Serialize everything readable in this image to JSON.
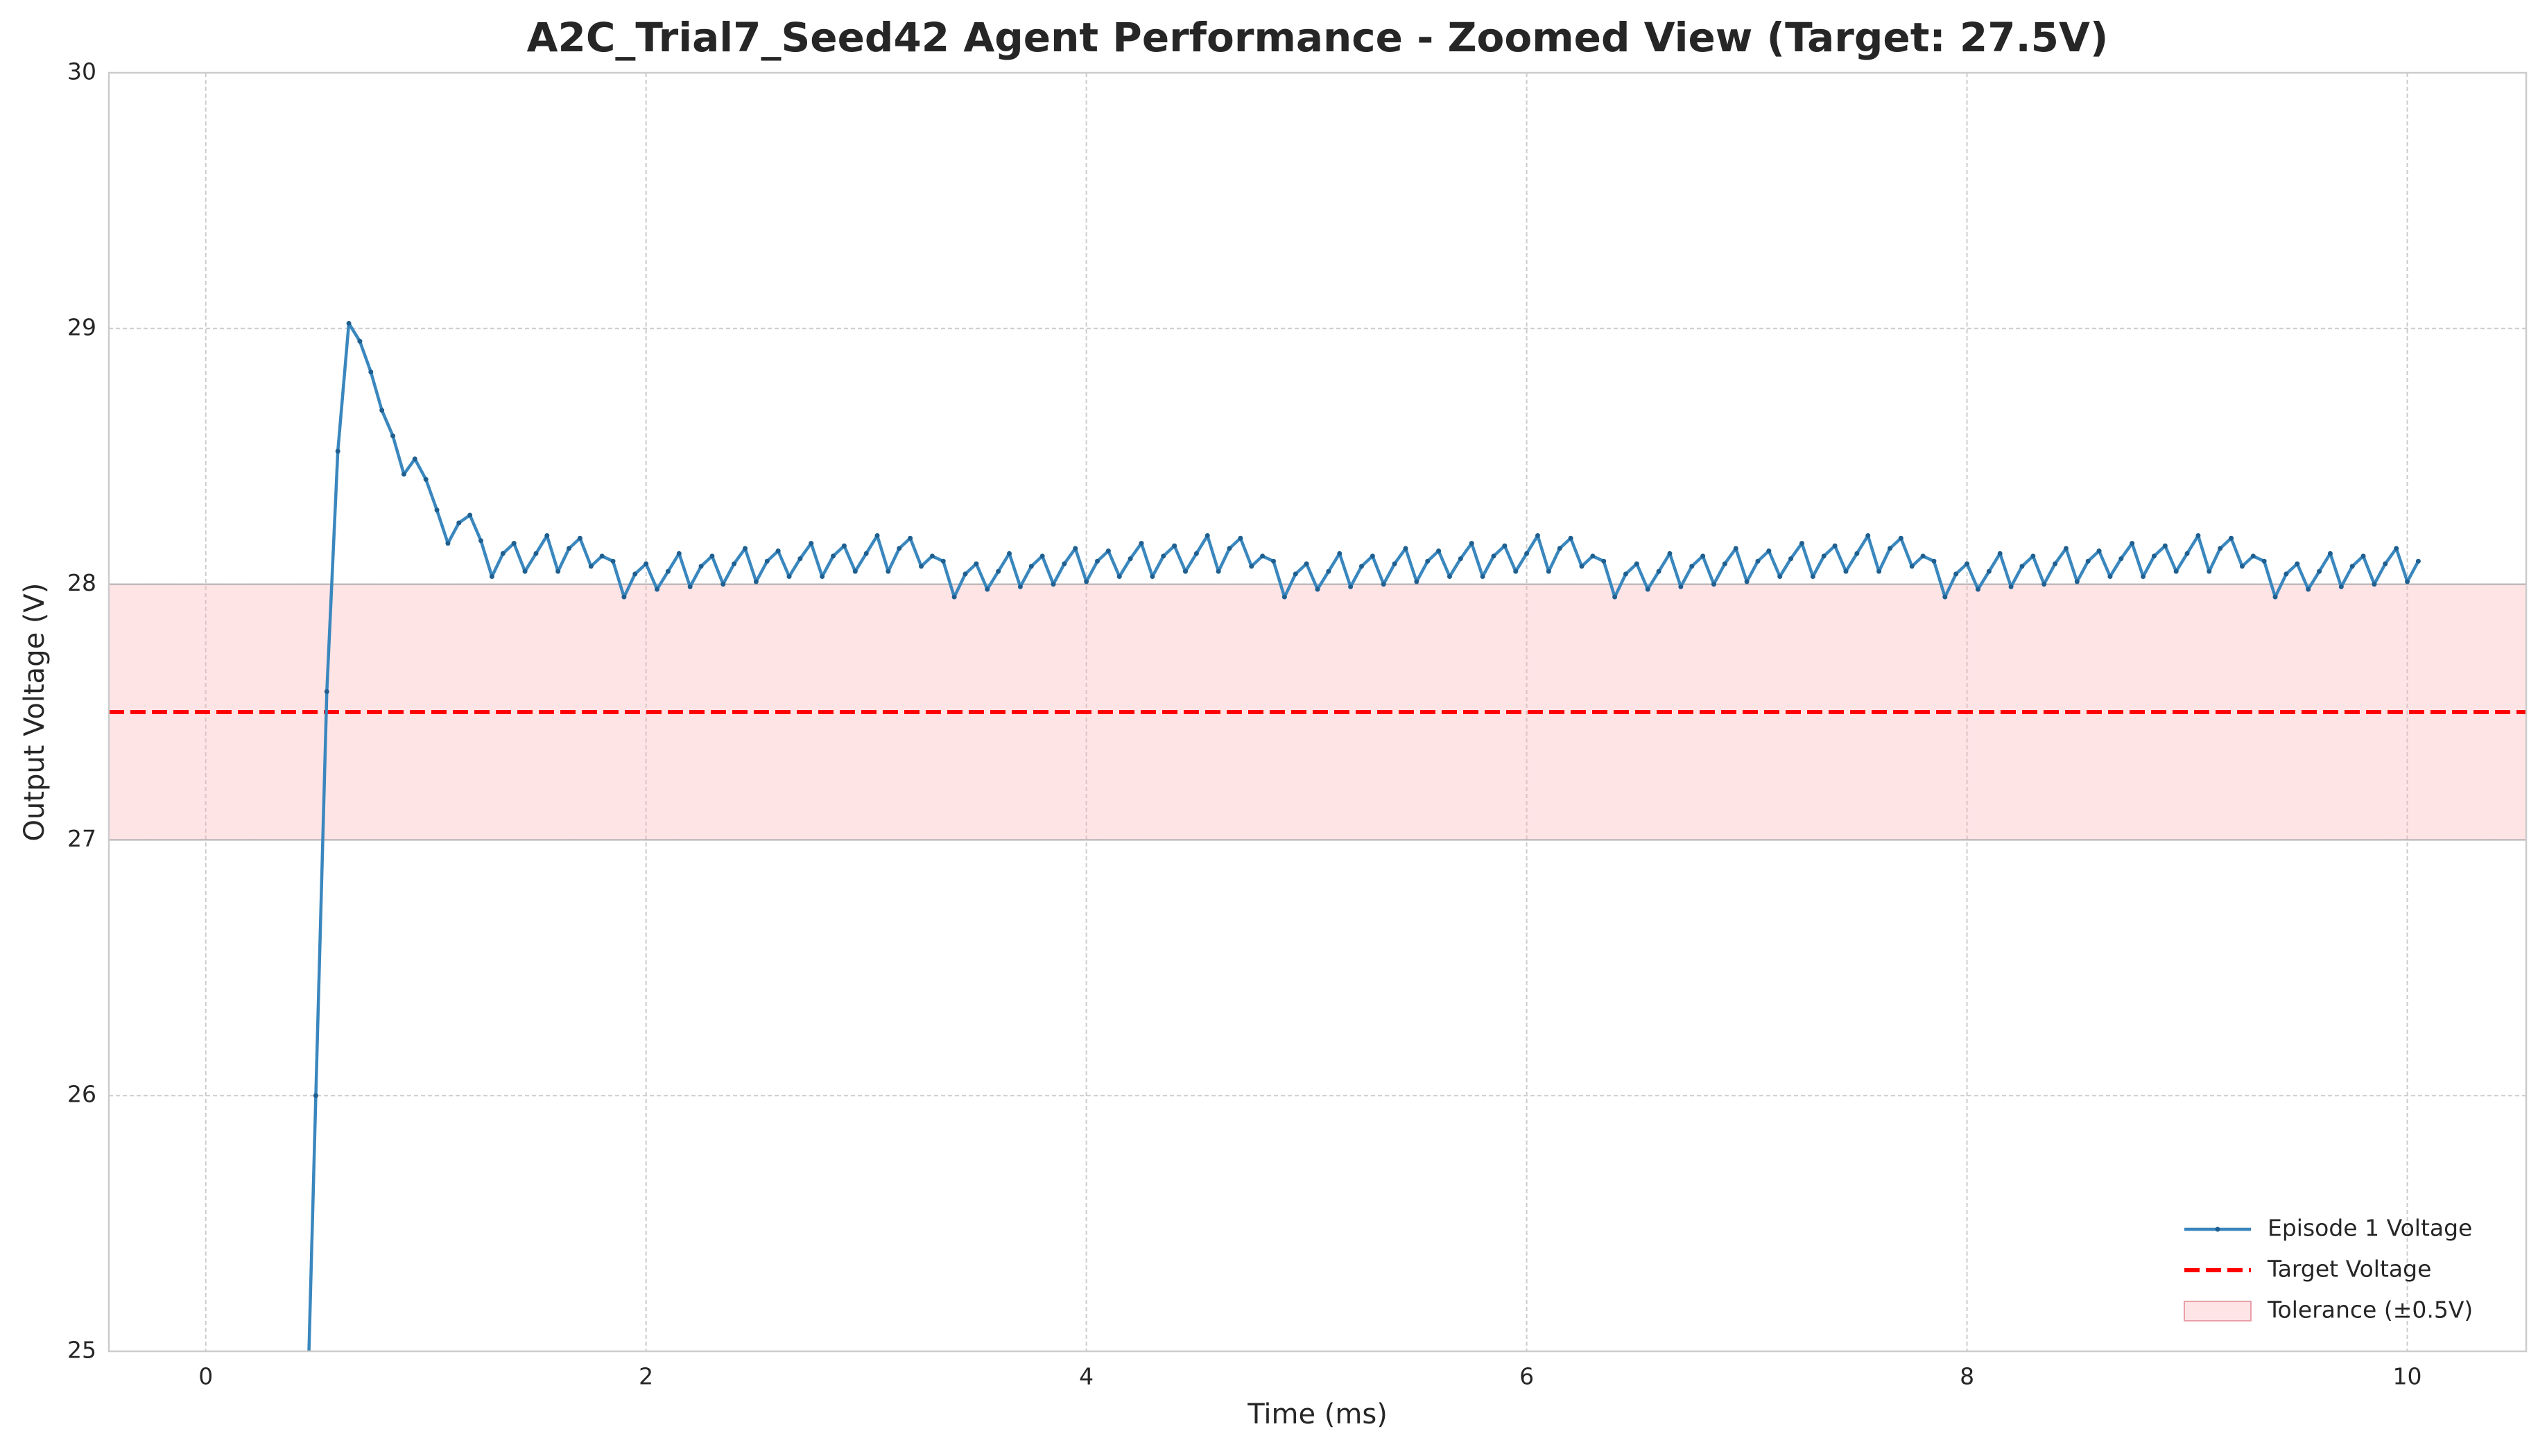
{
  "chart_data": {
    "type": "line",
    "title": "A2C_Trial7_Seed42 Agent Performance - Zoomed View (Target: 27.5V)",
    "xlabel": "Time (ms)",
    "ylabel": "Output Voltage (V)",
    "x": [
      0.45,
      0.5,
      0.55,
      0.6,
      0.65,
      0.7,
      0.75,
      0.8,
      0.85,
      0.9,
      0.95,
      1.0,
      1.05,
      1.1,
      1.15,
      1.2,
      1.25,
      1.3,
      1.35,
      1.4,
      1.45,
      1.5,
      1.55,
      1.6,
      1.65,
      1.7,
      1.75,
      1.8,
      1.85,
      1.9,
      1.95,
      2.0,
      2.05,
      2.1,
      2.15,
      2.2,
      2.25,
      2.3,
      2.35,
      2.4,
      2.45,
      2.5,
      2.55,
      2.6,
      2.65,
      2.7,
      2.75,
      2.8,
      2.85,
      2.9,
      2.95,
      3.0,
      3.05,
      3.1,
      3.15,
      3.2,
      3.25,
      3.3,
      3.35,
      3.4,
      3.45,
      3.5,
      3.55,
      3.6,
      3.65,
      3.7,
      3.75,
      3.8,
      3.85,
      3.9,
      3.95,
      4.0,
      4.05,
      4.1,
      4.15,
      4.2,
      4.25,
      4.3,
      4.35,
      4.4,
      4.45,
      4.5,
      4.55,
      4.6,
      4.65,
      4.7,
      4.75,
      4.8,
      4.85,
      4.9,
      4.95,
      5.0,
      5.05,
      5.1,
      5.15,
      5.2,
      5.25,
      5.3,
      5.35,
      5.4,
      5.45,
      5.5,
      5.55,
      5.6,
      5.65,
      5.7,
      5.75,
      5.8,
      5.85,
      5.9,
      5.95,
      6.0,
      6.05,
      6.1,
      6.15,
      6.2,
      6.25,
      6.3,
      6.35,
      6.4,
      6.45,
      6.5,
      6.55,
      6.6,
      6.65,
      6.7,
      6.75,
      6.8,
      6.85,
      6.9,
      6.95,
      7.0,
      7.05,
      7.1,
      7.15,
      7.2,
      7.25,
      7.3,
      7.35,
      7.4,
      7.45,
      7.5,
      7.55,
      7.6,
      7.65,
      7.7,
      7.75,
      7.8,
      7.85,
      7.9,
      7.95,
      8.0,
      8.05,
      8.1,
      8.15,
      8.2,
      8.25,
      8.3,
      8.35,
      8.4,
      8.45,
      8.5,
      8.55,
      8.6,
      8.65,
      8.7,
      8.75,
      8.8,
      8.85,
      8.9,
      8.95,
      9.0,
      9.05,
      9.1,
      9.15,
      9.2,
      9.25,
      9.3,
      9.35,
      9.4,
      9.45,
      9.5,
      9.55,
      9.6,
      9.65,
      9.7,
      9.75,
      9.8,
      9.85,
      9.9,
      9.95,
      10.0,
      10.05
    ],
    "series": [
      {
        "name": "Episode 1 Voltage",
        "color": "#3a87be",
        "values": [
          24.4,
          26.0,
          27.58,
          28.52,
          29.02,
          28.95,
          28.83,
          28.68,
          28.58,
          28.43,
          28.49,
          28.41,
          28.29,
          28.16,
          28.24,
          28.27,
          28.17,
          28.03,
          28.12,
          28.16,
          28.05,
          28.12,
          28.19,
          28.05,
          28.14,
          28.18,
          28.07,
          28.11,
          28.09,
          27.95,
          28.04,
          28.08,
          27.98,
          28.05,
          28.12,
          27.99,
          28.07,
          28.11,
          28.0,
          28.08,
          28.14,
          28.01,
          28.09,
          28.13,
          28.03,
          28.1,
          28.16,
          28.03,
          28.11,
          28.15,
          28.05,
          28.12,
          28.19,
          28.05,
          28.14,
          28.18,
          28.07,
          28.11,
          28.09,
          27.95,
          28.04,
          28.08,
          27.98,
          28.05,
          28.12,
          27.99,
          28.07,
          28.11,
          28.0,
          28.08,
          28.14,
          28.01,
          28.09,
          28.13,
          28.03,
          28.1,
          28.16,
          28.03,
          28.11,
          28.15,
          28.05,
          28.12,
          28.19,
          28.05,
          28.14,
          28.18,
          28.07,
          28.11,
          28.09,
          27.95,
          28.04,
          28.08,
          27.98,
          28.05,
          28.12,
          27.99,
          28.07,
          28.11,
          28.0,
          28.08,
          28.14,
          28.01,
          28.09,
          28.13,
          28.03,
          28.1,
          28.16,
          28.03,
          28.11,
          28.15,
          28.05,
          28.12,
          28.19,
          28.05,
          28.14,
          28.18,
          28.07,
          28.11,
          28.09,
          27.95,
          28.04,
          28.08,
          27.98,
          28.05,
          28.12,
          27.99,
          28.07,
          28.11,
          28.0,
          28.08,
          28.14,
          28.01,
          28.09,
          28.13,
          28.03,
          28.1,
          28.16,
          28.03,
          28.11,
          28.15,
          28.05,
          28.12,
          28.19,
          28.05,
          28.14,
          28.18,
          28.07,
          28.11,
          28.09,
          27.95,
          28.04,
          28.08,
          27.98,
          28.05,
          28.12,
          27.99,
          28.07,
          28.11,
          28.0,
          28.08,
          28.14,
          28.01,
          28.09,
          28.13,
          28.03,
          28.1,
          28.16,
          28.03,
          28.11,
          28.15,
          28.05,
          28.12,
          28.19,
          28.05,
          28.14,
          28.18,
          28.07,
          28.11,
          28.09,
          27.95,
          28.04,
          28.08,
          27.98,
          28.05,
          28.12,
          27.99,
          28.07,
          28.11,
          28.0,
          28.08,
          28.14,
          28.01,
          28.09
        ]
      }
    ],
    "target": {
      "name": "Target Voltage",
      "value": 27.5,
      "color": "#ff0000"
    },
    "band": {
      "name": "Tolerance (±0.5V)",
      "range": [
        27,
        28
      ],
      "color": "#ffb3b8"
    },
    "xlim": [
      -0.44,
      10.54
    ],
    "xticks": [
      0,
      2,
      4,
      6,
      8,
      10
    ],
    "ylim": [
      25,
      30
    ],
    "yticks": [
      25,
      26,
      27,
      28,
      29,
      30
    ],
    "grid": true,
    "legend": "lower right"
  }
}
